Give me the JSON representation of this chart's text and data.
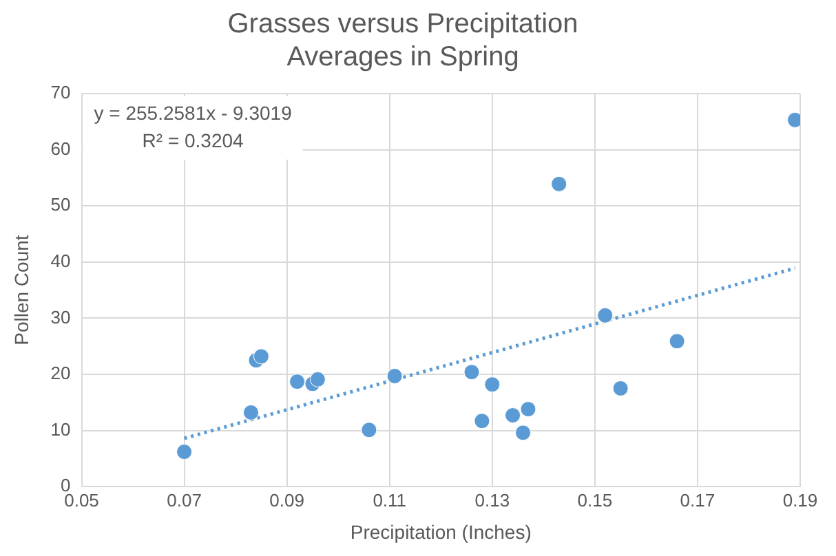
{
  "chart_data": {
    "type": "scatter",
    "title": "Grasses versus Precipitation\nAverages in Spring",
    "xlabel": "Precipitation (Inches)",
    "ylabel": "Pollen Count",
    "annotations": [
      "y = 255.2581x - 9.3019",
      "R² = 0.3204"
    ],
    "xlim": [
      0.05,
      0.19
    ],
    "xticks": [
      0.05,
      0.07,
      0.09,
      0.11,
      0.13,
      0.15,
      0.17,
      0.19
    ],
    "ylim": [
      0,
      70
    ],
    "yticks": [
      0,
      10,
      20,
      30,
      40,
      50,
      60,
      70
    ],
    "grid": true,
    "legend": false,
    "series": [
      {
        "marker": "circle",
        "color": "#5b9bd5",
        "x": [
          0.07,
          0.083,
          0.084,
          0.085,
          0.092,
          0.095,
          0.096,
          0.106,
          0.111,
          0.126,
          0.128,
          0.13,
          0.134,
          0.136,
          0.137,
          0.143,
          0.152,
          0.155,
          0.166,
          0.189
        ],
        "values": [
          6.2,
          13.2,
          22.5,
          23.2,
          18.7,
          18.3,
          19.1,
          10.1,
          19.7,
          20.4,
          11.7,
          18.2,
          12.7,
          9.6,
          13.8,
          53.9,
          30.5,
          17.5,
          25.9,
          65.3
        ]
      },
      {
        "type": "line",
        "marker": "none",
        "line_style": "dotted",
        "color": "#5b9bd5",
        "x": [
          0.07,
          0.189
        ],
        "values": [
          8.6,
          38.9
        ]
      }
    ]
  }
}
